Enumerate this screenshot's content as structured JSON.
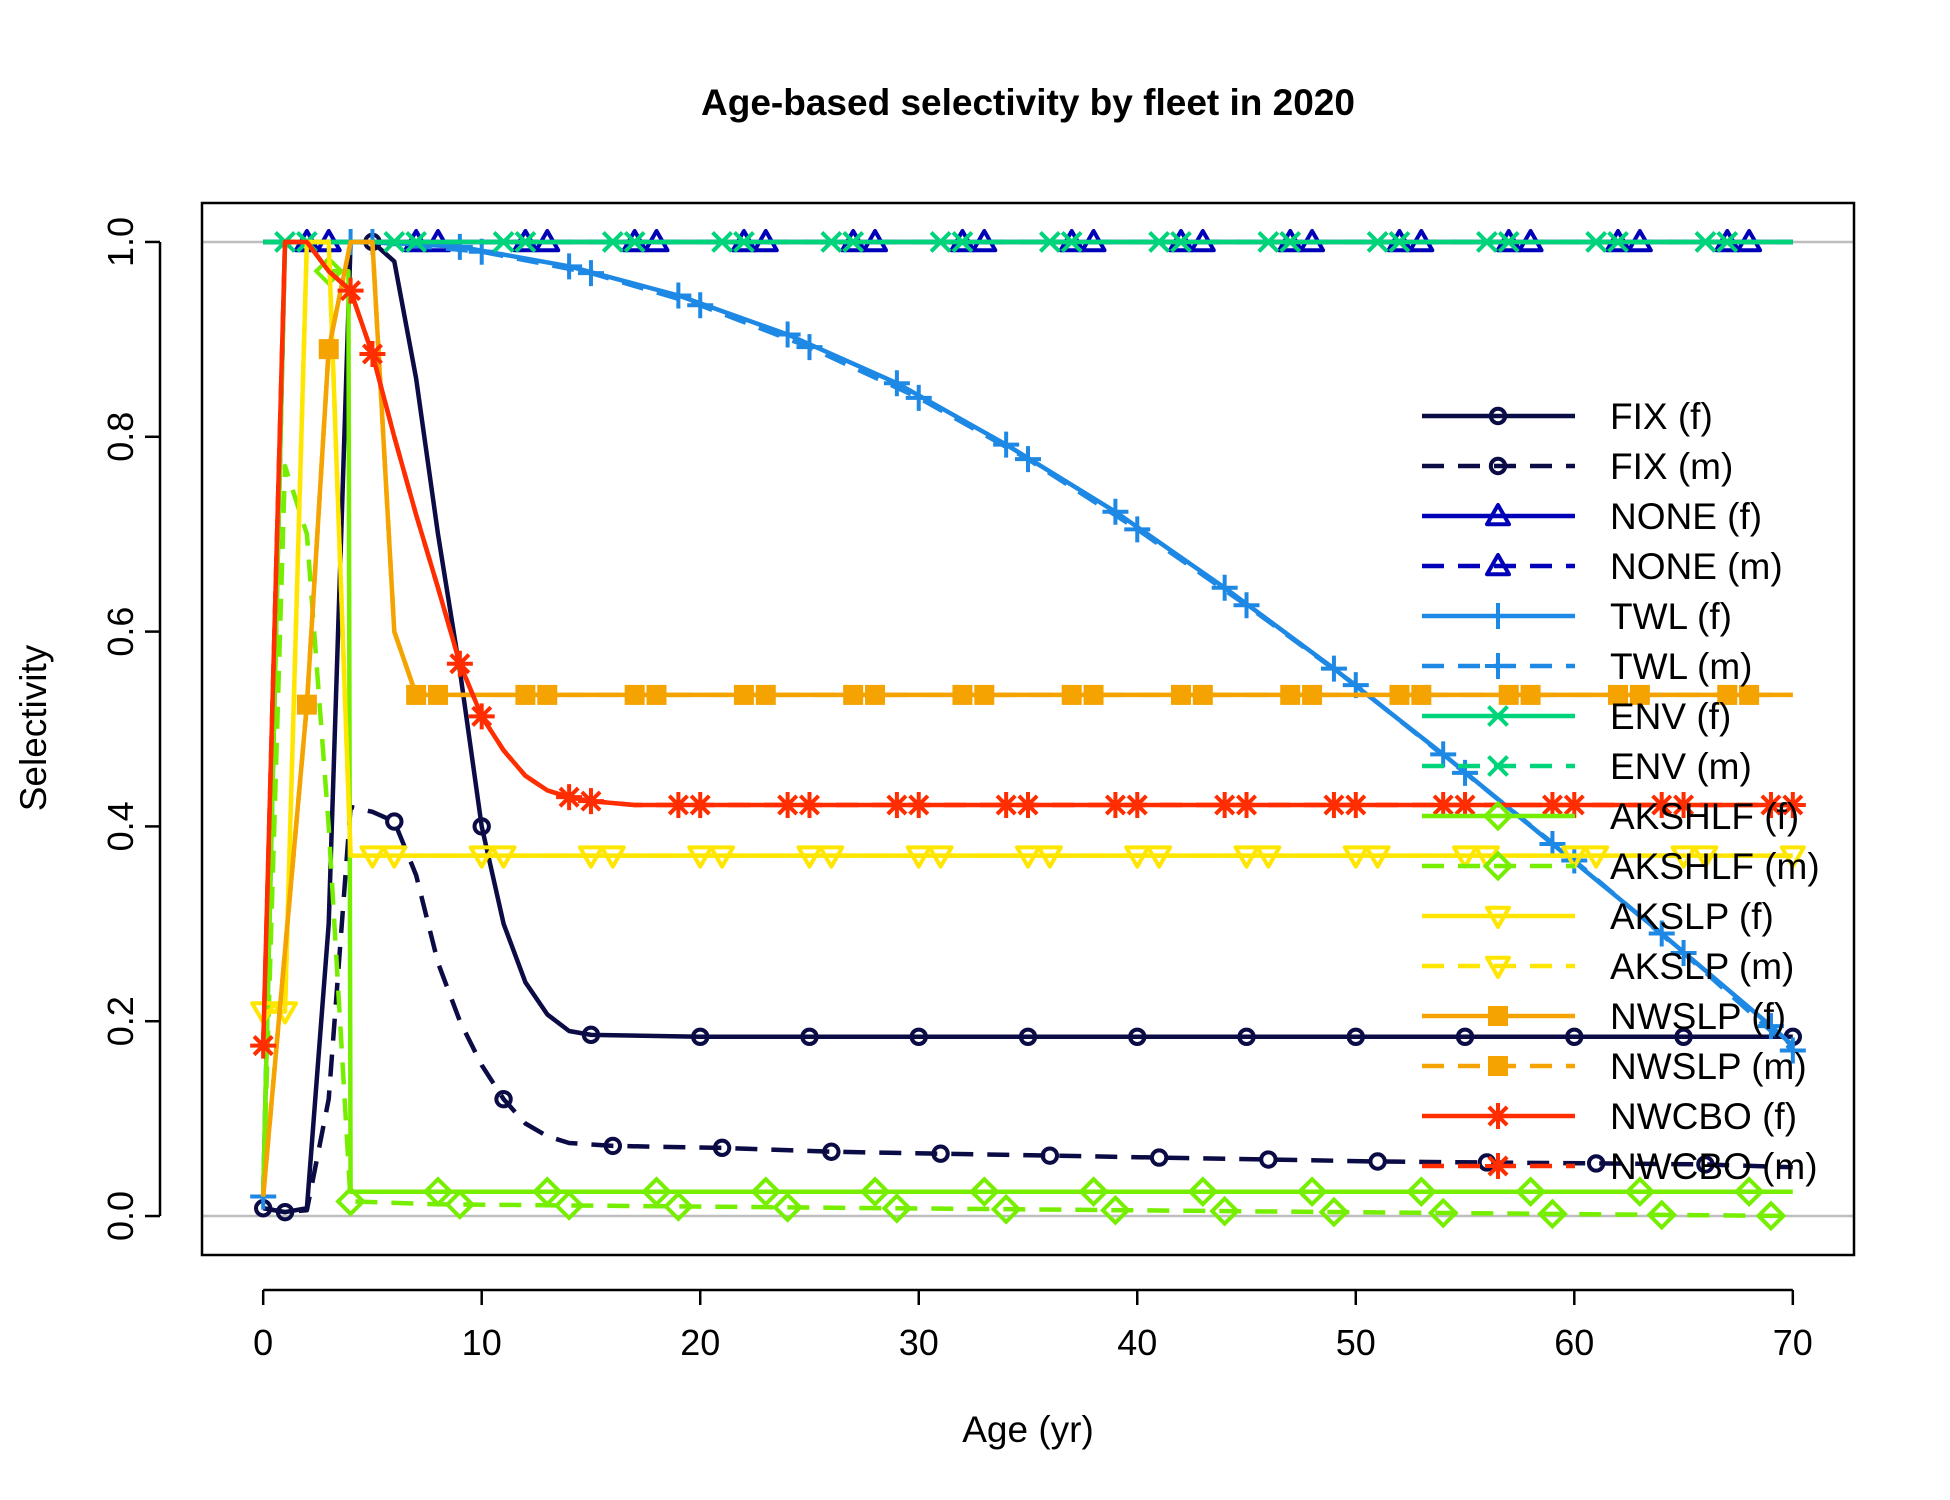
{
  "chart_data": {
    "type": "line",
    "title": "Age-based selectivity by fleet in 2020",
    "xlabel": "Age (yr)",
    "ylabel": "Selectivity",
    "xlim": [
      -2.8,
      72.8
    ],
    "ylim": [
      -0.04,
      1.04
    ],
    "xticks": [
      0,
      10,
      20,
      30,
      40,
      50,
      60,
      70
    ],
    "yticks": [
      0.0,
      0.2,
      0.4,
      0.6,
      0.8,
      1.0
    ],
    "ytick_labels": [
      "0.0",
      "0.2",
      "0.4",
      "0.6",
      "0.8",
      "1.0"
    ],
    "reference_lines": [
      0,
      1
    ],
    "grid": false,
    "legend_position": "right",
    "series": [
      {
        "name": "FIX (f)",
        "color": "#0b0b45",
        "dash": "solid",
        "marker": "circle",
        "marker_every": 5,
        "marker_offset": 0,
        "points": [
          [
            0,
            0.008
          ],
          [
            1,
            0.004
          ],
          [
            2,
            0.008
          ],
          [
            3,
            0.3
          ],
          [
            4,
            1.0
          ],
          [
            5,
            1.0
          ],
          [
            6,
            0.98
          ],
          [
            7,
            0.86
          ],
          [
            8,
            0.7
          ],
          [
            9,
            0.56
          ],
          [
            10,
            0.4
          ],
          [
            11,
            0.3
          ],
          [
            12,
            0.24
          ],
          [
            13,
            0.207
          ],
          [
            14,
            0.19
          ],
          [
            15,
            0.186
          ],
          [
            20,
            0.184
          ],
          [
            70,
            0.184
          ]
        ]
      },
      {
        "name": "FIX (m)",
        "color": "#0b0b45",
        "dash": "dashed",
        "marker": "circle",
        "marker_every": 5,
        "marker_offset": 1,
        "points": [
          [
            0,
            0.008
          ],
          [
            1,
            0.004
          ],
          [
            2,
            0.006
          ],
          [
            3,
            0.12
          ],
          [
            4,
            0.42
          ],
          [
            5,
            0.415
          ],
          [
            6,
            0.405
          ],
          [
            7,
            0.35
          ],
          [
            8,
            0.26
          ],
          [
            9,
            0.2
          ],
          [
            10,
            0.155
          ],
          [
            11,
            0.12
          ],
          [
            12,
            0.095
          ],
          [
            13,
            0.082
          ],
          [
            14,
            0.075
          ],
          [
            16,
            0.072
          ],
          [
            21,
            0.07
          ],
          [
            26,
            0.066
          ],
          [
            31,
            0.064
          ],
          [
            36,
            0.062
          ],
          [
            41,
            0.06
          ],
          [
            46,
            0.058
          ],
          [
            51,
            0.056
          ],
          [
            56,
            0.055
          ],
          [
            61,
            0.054
          ],
          [
            66,
            0.053
          ],
          [
            70,
            0.05
          ]
        ]
      },
      {
        "name": "NONE (f)",
        "color": "#0000b8",
        "dash": "solid",
        "marker": "triangle",
        "marker_every": 5,
        "marker_offset": 2,
        "points": [
          [
            0,
            1.0
          ],
          [
            70,
            1.0
          ]
        ]
      },
      {
        "name": "NONE (m)",
        "color": "#0000b8",
        "dash": "dashed",
        "marker": "triangle",
        "marker_every": 5,
        "marker_offset": 3,
        "points": [
          [
            0,
            1.0
          ],
          [
            70,
            1.0
          ]
        ]
      },
      {
        "name": "TWL (f)",
        "color": "#1e88e5",
        "dash": "solid",
        "marker": "plus",
        "marker_every": 5,
        "marker_offset": 4,
        "points": [
          [
            0,
            0.02
          ],
          [
            1,
            1.0
          ],
          [
            5,
            1.0
          ],
          [
            9,
            0.995
          ],
          [
            14,
            0.975
          ],
          [
            19,
            0.945
          ],
          [
            24,
            0.905
          ],
          [
            29,
            0.855
          ],
          [
            34,
            0.792
          ],
          [
            39,
            0.723
          ],
          [
            44,
            0.645
          ],
          [
            49,
            0.562
          ],
          [
            54,
            0.474
          ],
          [
            59,
            0.382
          ],
          [
            64,
            0.29
          ],
          [
            69,
            0.195
          ],
          [
            70,
            0.175
          ]
        ]
      },
      {
        "name": "TWL (m)",
        "color": "#1e88e5",
        "dash": "dashed",
        "marker": "plus",
        "marker_every": 5,
        "marker_offset": 0,
        "points": [
          [
            0,
            0.02
          ],
          [
            1,
            1.0
          ],
          [
            5,
            1.0
          ],
          [
            10,
            0.99
          ],
          [
            15,
            0.968
          ],
          [
            20,
            0.935
          ],
          [
            25,
            0.892
          ],
          [
            30,
            0.84
          ],
          [
            35,
            0.777
          ],
          [
            40,
            0.705
          ],
          [
            45,
            0.627
          ],
          [
            50,
            0.545
          ],
          [
            55,
            0.455
          ],
          [
            60,
            0.365
          ],
          [
            65,
            0.27
          ],
          [
            70,
            0.17
          ]
        ]
      },
      {
        "name": "ENV (f)",
        "color": "#00d47a",
        "dash": "solid",
        "marker": "cross",
        "marker_every": 5,
        "marker_offset": 1,
        "points": [
          [
            0,
            1.0
          ],
          [
            70,
            1.0
          ]
        ]
      },
      {
        "name": "ENV (m)",
        "color": "#00d47a",
        "dash": "dashed",
        "marker": "cross",
        "marker_every": 5,
        "marker_offset": 2,
        "points": [
          [
            0,
            1.0
          ],
          [
            70,
            1.0
          ]
        ]
      },
      {
        "name": "AKSHLF (f)",
        "color": "#76ee00",
        "dash": "solid",
        "marker": "diamond",
        "marker_every": 5,
        "marker_offset": 3,
        "points": [
          [
            0,
            0.02
          ],
          [
            1,
            1.0
          ],
          [
            2,
            1.0
          ],
          [
            3,
            0.97
          ],
          [
            3.9,
            0.97
          ],
          [
            4,
            0.025
          ],
          [
            70,
            0.025
          ]
        ]
      },
      {
        "name": "AKSHLF (m)",
        "color": "#76ee00",
        "dash": "dashed",
        "marker": "diamond",
        "marker_every": 5,
        "marker_offset": 4,
        "points": [
          [
            0,
            0.02
          ],
          [
            1,
            0.77
          ],
          [
            2,
            0.7
          ],
          [
            3,
            0.4
          ],
          [
            4,
            0.015
          ],
          [
            8,
            0.012
          ],
          [
            70,
            0.0
          ]
        ]
      },
      {
        "name": "AKSLP (f)",
        "color": "#ffe600",
        "dash": "solid",
        "marker": "triangle-down",
        "marker_every": 5,
        "marker_offset": 0,
        "points": [
          [
            0,
            0.21
          ],
          [
            1,
            0.21
          ],
          [
            2,
            1.0
          ],
          [
            3,
            1.0
          ],
          [
            4,
            0.37
          ],
          [
            70,
            0.37
          ]
        ]
      },
      {
        "name": "AKSLP (m)",
        "color": "#ffe600",
        "dash": "dashed",
        "marker": "triangle-down",
        "marker_every": 5,
        "marker_offset": 1,
        "points": [
          [
            0,
            0.21
          ],
          [
            1,
            0.21
          ],
          [
            2,
            1.0
          ],
          [
            3,
            1.0
          ],
          [
            4,
            0.37
          ],
          [
            70,
            0.37
          ]
        ]
      },
      {
        "name": "NWSLP (f)",
        "color": "#f5a300",
        "dash": "solid",
        "marker": "square",
        "marker_every": 5,
        "marker_offset": 2,
        "points": [
          [
            0,
            0.02
          ],
          [
            2,
            0.525
          ],
          [
            3,
            0.89
          ],
          [
            4,
            1.0
          ],
          [
            5,
            1.0
          ],
          [
            6,
            0.6
          ],
          [
            7,
            0.535
          ],
          [
            70,
            0.535
          ]
        ]
      },
      {
        "name": "NWSLP (m)",
        "color": "#f5a300",
        "dash": "dashed",
        "marker": "square",
        "marker_every": 5,
        "marker_offset": 3,
        "points": [
          [
            0,
            0.02
          ],
          [
            2,
            0.525
          ],
          [
            3,
            0.89
          ],
          [
            4,
            1.0
          ],
          [
            5,
            1.0
          ],
          [
            6,
            0.6
          ],
          [
            7,
            0.535
          ],
          [
            70,
            0.535
          ]
        ]
      },
      {
        "name": "NWCBO (f)",
        "color": "#ff2d00",
        "dash": "solid",
        "marker": "star",
        "marker_every": 5,
        "marker_offset": 4,
        "points": [
          [
            0,
            0.175
          ],
          [
            1,
            1.0
          ],
          [
            2,
            1.0
          ],
          [
            3,
            0.97
          ],
          [
            4,
            0.95
          ],
          [
            5,
            0.885
          ],
          [
            6,
            0.8
          ],
          [
            7,
            0.72
          ],
          [
            8,
            0.645
          ],
          [
            9,
            0.567
          ],
          [
            10,
            0.513
          ],
          [
            11,
            0.478
          ],
          [
            12,
            0.452
          ],
          [
            13,
            0.437
          ],
          [
            14,
            0.43
          ],
          [
            15,
            0.426
          ],
          [
            17,
            0.422
          ],
          [
            70,
            0.422
          ]
        ]
      },
      {
        "name": "NWCBO (m)",
        "color": "#ff2d00",
        "dash": "dashed",
        "marker": "star",
        "marker_every": 5,
        "marker_offset": 0,
        "points": [
          [
            0,
            0.175
          ],
          [
            1,
            1.0
          ],
          [
            2,
            1.0
          ],
          [
            3,
            0.97
          ],
          [
            4,
            0.95
          ],
          [
            5,
            0.885
          ],
          [
            6,
            0.8
          ],
          [
            7,
            0.72
          ],
          [
            8,
            0.645
          ],
          [
            9,
            0.567
          ],
          [
            10,
            0.513
          ],
          [
            11,
            0.478
          ],
          [
            12,
            0.452
          ],
          [
            13,
            0.437
          ],
          [
            14,
            0.43
          ],
          [
            15,
            0.426
          ],
          [
            17,
            0.422
          ],
          [
            70,
            0.422
          ]
        ]
      }
    ]
  }
}
